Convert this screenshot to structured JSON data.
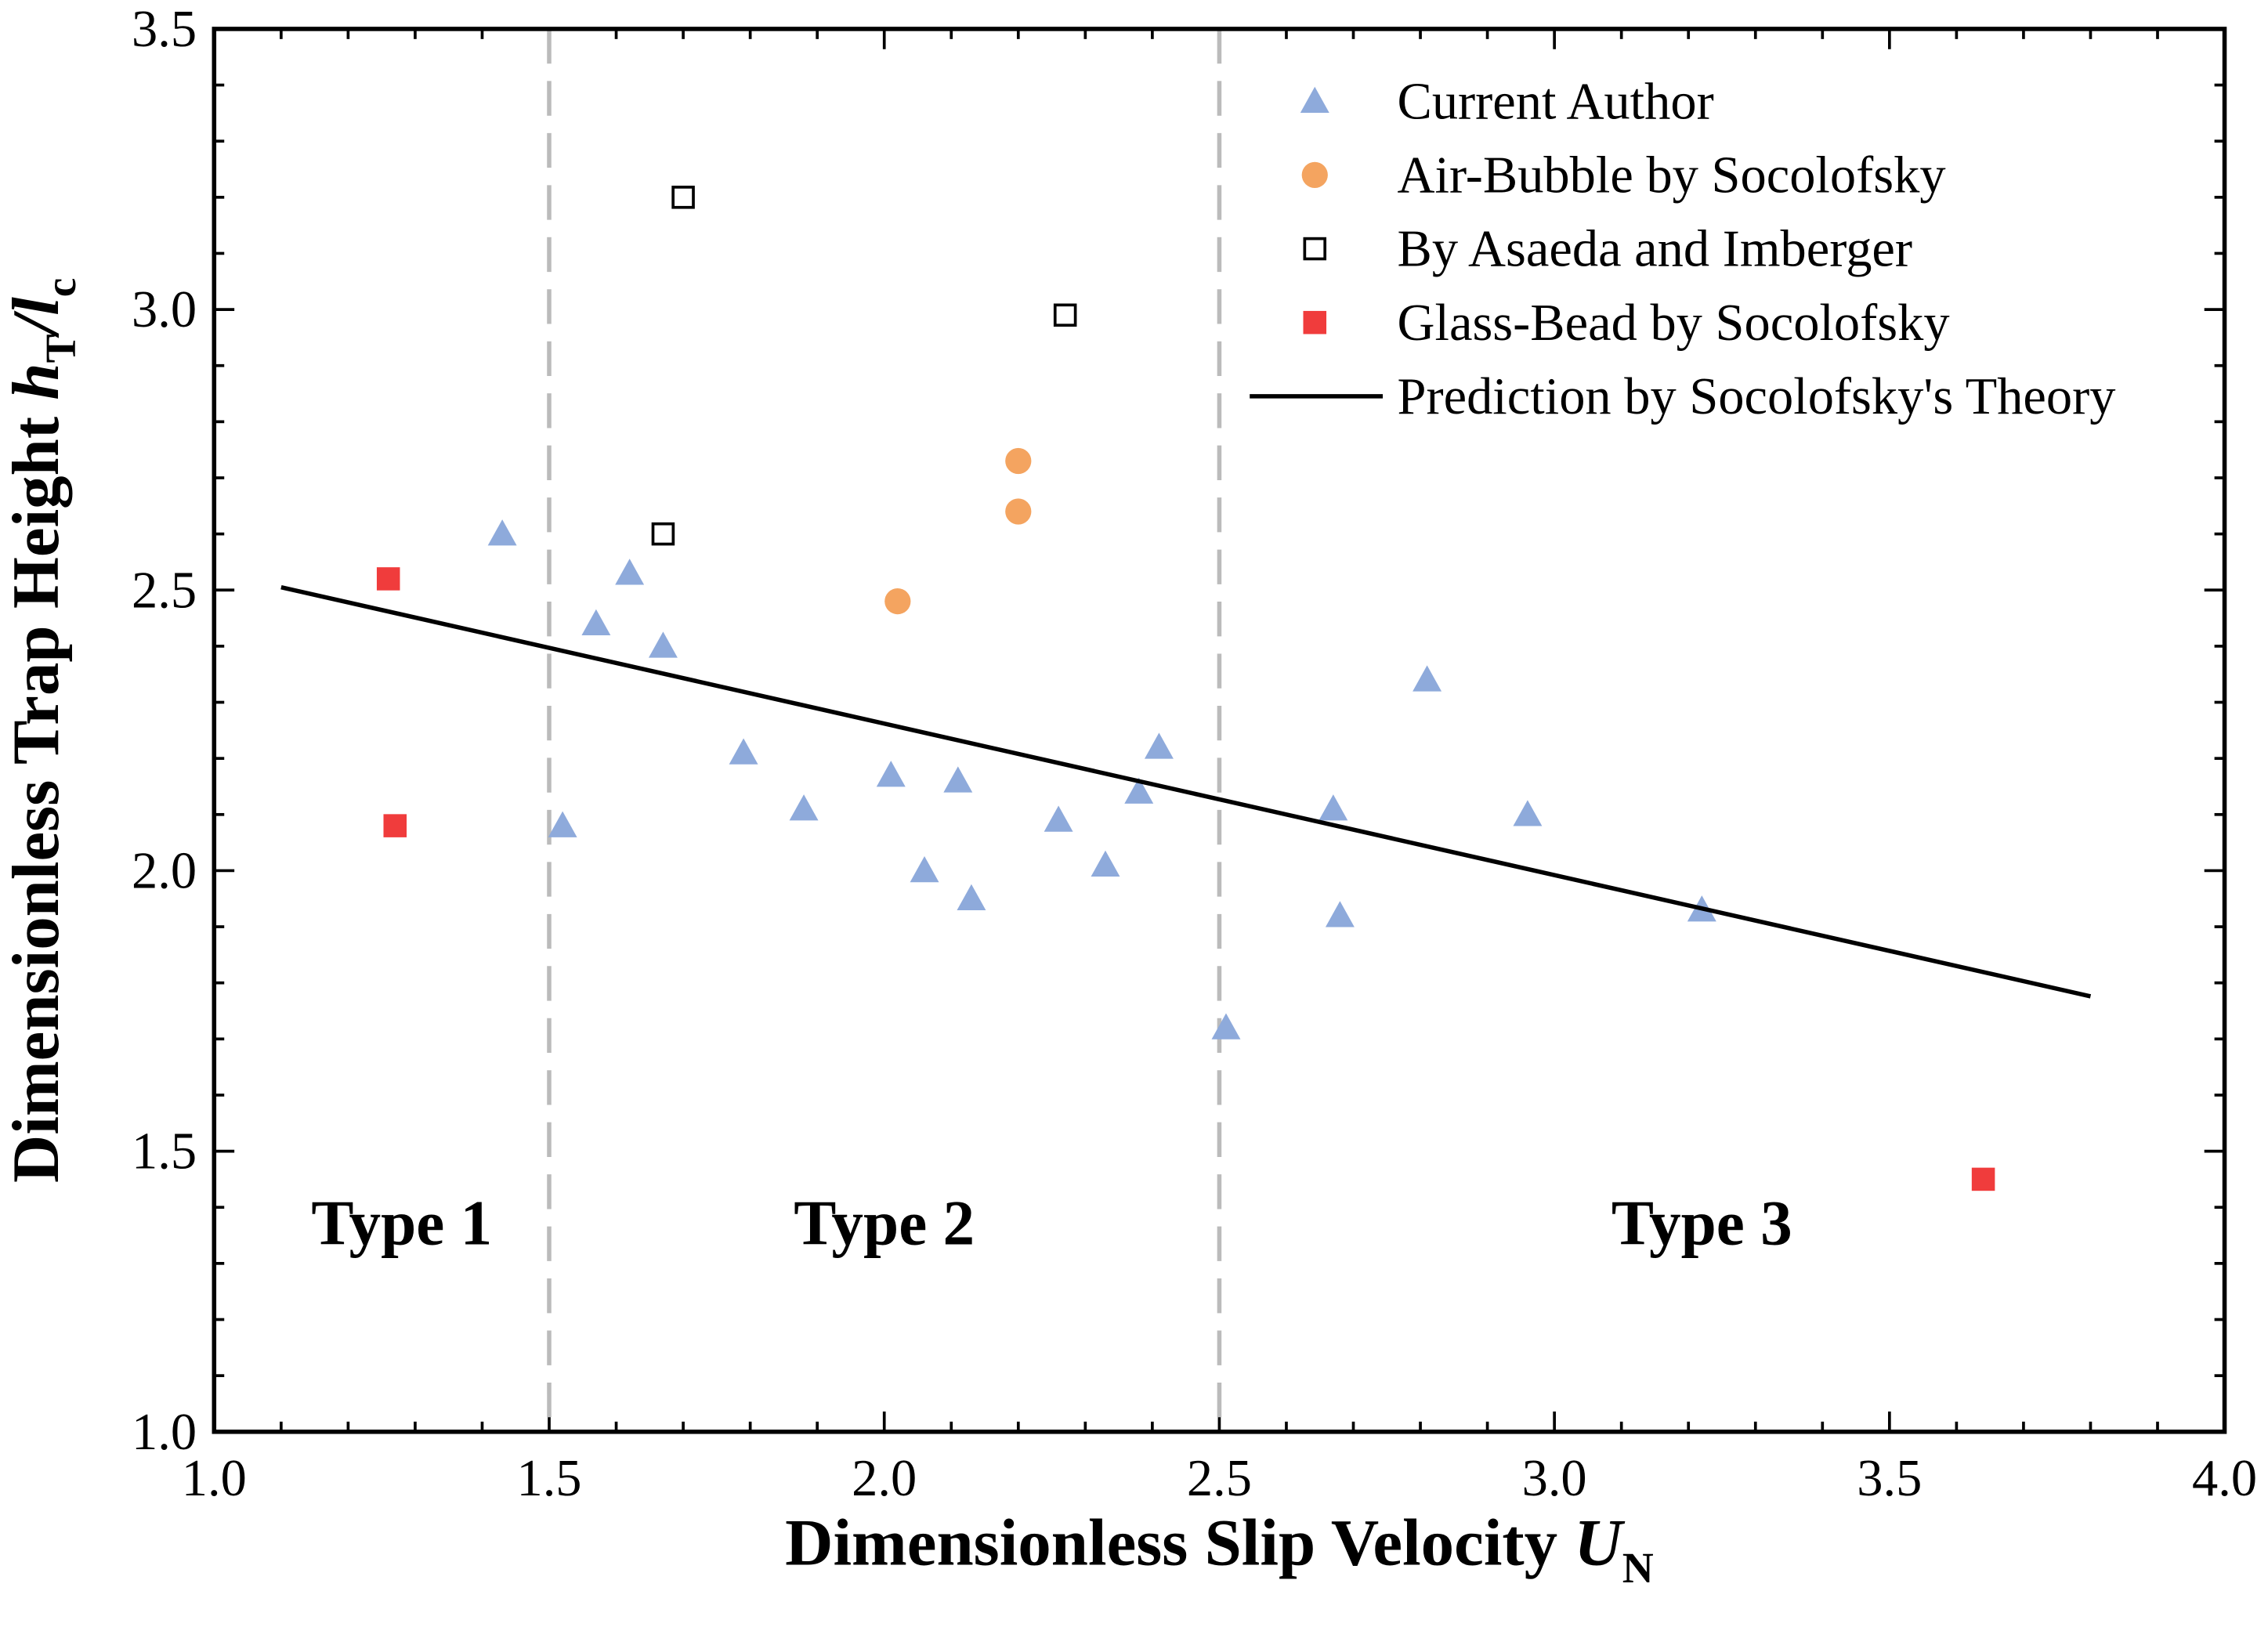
{
  "chart_data": {
    "type": "scatter",
    "xlabel": "Dimensionless Slip Velocity ",
    "xlabel_var": "U",
    "xlabel_sub": "N",
    "ylabel": "Dimensionless Trap Height ",
    "ylabel_var_h": "h",
    "ylabel_sub_T": "T",
    "ylabel_slash": "/",
    "ylabel_var_l": "l",
    "ylabel_sub_c": "c",
    "xlim": [
      1.0,
      4.0
    ],
    "ylim": [
      1.0,
      3.5
    ],
    "xticks": [
      "1.0",
      "1.5",
      "2.0",
      "2.5",
      "3.0",
      "3.5",
      "4.0"
    ],
    "yticks": [
      "1.0",
      "1.5",
      "2.0",
      "2.5",
      "3.0",
      "3.5"
    ],
    "legend_position": "top-right",
    "vlines": [
      1.5,
      2.5
    ],
    "regions": [
      {
        "label": "Type 1",
        "x": 1.28,
        "y": 1.37
      },
      {
        "label": "Type 2",
        "x": 2.0,
        "y": 1.37
      },
      {
        "label": "Type 3",
        "x": 3.22,
        "y": 1.37
      }
    ],
    "series": [
      {
        "name": "Current Author",
        "marker": "triangle",
        "color": "#8eaadb",
        "x": [
          1.43,
          1.62,
          1.57,
          1.67,
          1.52,
          1.79,
          1.88,
          2.01,
          2.06,
          2.11,
          2.13,
          2.26,
          2.33,
          2.38,
          2.41,
          2.51,
          2.67,
          2.68,
          2.81,
          2.96,
          3.22
        ],
        "y": [
          2.6,
          2.53,
          2.44,
          2.4,
          2.08,
          2.21,
          2.11,
          2.17,
          2.0,
          2.16,
          1.95,
          2.09,
          2.01,
          2.14,
          2.22,
          1.72,
          2.11,
          1.92,
          2.34,
          2.1,
          1.93
        ]
      },
      {
        "name": "Air-Bubble by Socolofsky",
        "marker": "circle",
        "color": "#f4a460",
        "x": [
          2.02,
          2.2,
          2.2
        ],
        "y": [
          2.48,
          2.64,
          2.73
        ]
      },
      {
        "name": "By Asaeda and Imberger",
        "marker": "open-square",
        "color": "#000000",
        "x": [
          1.7,
          2.27,
          1.67
        ],
        "y": [
          3.2,
          2.99,
          2.6
        ]
      },
      {
        "name": "Glass-Bead by Socolofsky",
        "marker": "square",
        "color": "#f03c3c",
        "x": [
          1.26,
          1.27,
          3.64
        ],
        "y": [
          2.52,
          2.08,
          1.45
        ]
      },
      {
        "name": "Prediction by Socolofsky's Theory",
        "marker": "line",
        "color": "#000000",
        "x": [
          1.1,
          3.8
        ],
        "y": [
          2.505,
          1.776
        ]
      }
    ]
  }
}
